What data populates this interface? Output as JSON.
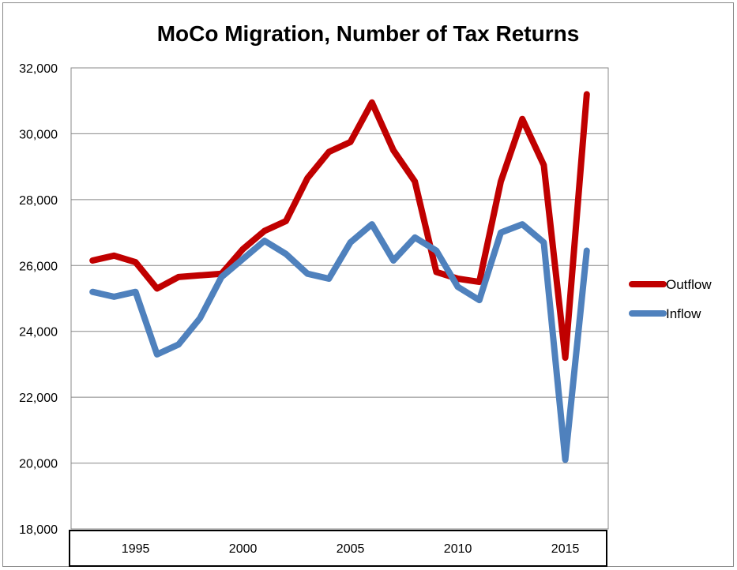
{
  "chart_data": {
    "type": "line",
    "title": "MoCo Migration, Number of Tax Returns",
    "x": [
      1993,
      1994,
      1995,
      1996,
      1997,
      1998,
      1999,
      2000,
      2001,
      2002,
      2003,
      2004,
      2005,
      2006,
      2007,
      2008,
      2009,
      2010,
      2011,
      2012,
      2013,
      2014,
      2015,
      2016
    ],
    "xticks": [
      1995,
      2000,
      2005,
      2010,
      2015
    ],
    "xtick_labels": [
      "1995",
      "2000",
      "2005",
      "2010",
      "2015"
    ],
    "ylim": [
      18000,
      32000
    ],
    "yticks": [
      18000,
      20000,
      22000,
      24000,
      26000,
      28000,
      30000,
      32000
    ],
    "ytick_labels": [
      "18,000",
      "20,000",
      "22,000",
      "24,000",
      "26,000",
      "28,000",
      "30,000",
      "32,000"
    ],
    "grid": true,
    "legend_position": "right",
    "series": [
      {
        "name": "Outflow",
        "color": "#c00000",
        "values": [
          26150,
          26300,
          26100,
          25300,
          25650,
          25700,
          25750,
          26500,
          27050,
          27350,
          28650,
          29450,
          29750,
          30950,
          29500,
          28550,
          25800,
          25600,
          25500,
          28550,
          30450,
          29050,
          23200,
          31200
        ]
      },
      {
        "name": "Inflow",
        "color": "#4f81bd",
        "values": [
          25200,
          25050,
          25200,
          23300,
          23600,
          24400,
          25650,
          26200,
          26750,
          26350,
          25750,
          25600,
          26700,
          27250,
          26150,
          26850,
          26450,
          25350,
          24950,
          27000,
          27250,
          26700,
          20100,
          26450
        ]
      }
    ]
  }
}
